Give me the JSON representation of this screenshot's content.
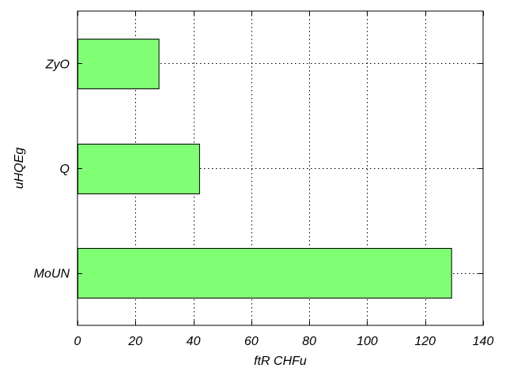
{
  "chart_data": {
    "type": "bar",
    "orientation": "horizontal",
    "title": "",
    "xlabel": "ftR CHFu",
    "ylabel": "uHQEg",
    "categories": [
      "ZyO",
      "Q",
      "MoUN"
    ],
    "values": [
      28,
      42,
      129
    ],
    "xlim": [
      0,
      140
    ],
    "xticks": [
      0,
      20,
      40,
      60,
      80,
      100,
      120,
      140
    ],
    "grid": true,
    "bar_color": "#80ff75",
    "edge_color": "#000000",
    "legend": "none"
  }
}
